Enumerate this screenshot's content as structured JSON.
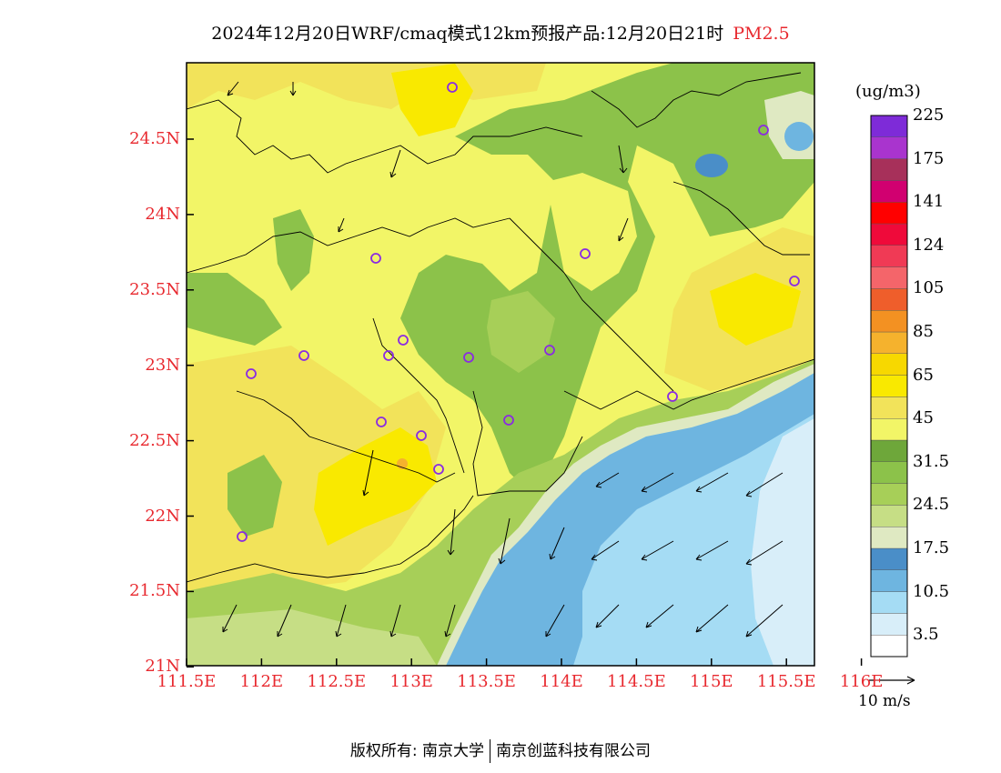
{
  "title": {
    "main": "2024年12月20日WRF/cmaq模式12km预报产品:12月20日21时",
    "pollutant": "PM2.5"
  },
  "map": {
    "x_ticks": [
      "111.5E",
      "112E",
      "112.5E",
      "113E",
      "113.5E",
      "114E",
      "114.5E",
      "115E",
      "115.5E",
      "116E"
    ],
    "y_ticks": [
      "24.5N",
      "24N",
      "23.5N",
      "23N",
      "22.5N",
      "22N",
      "21.5N",
      "21N"
    ]
  },
  "legend": {
    "unit": "(ug/m3)",
    "colors": [
      "#ffffff",
      "#d8eef9",
      "#a5dcf4",
      "#6eb5e0",
      "#4a8ec8",
      "#dfe9c2",
      "#c6de85",
      "#a7cf58",
      "#8cc24a",
      "#6ea73a",
      "#f2f567",
      "#f2e35a",
      "#f9e900",
      "#f7d800",
      "#f5b22d",
      "#f39122",
      "#ef5e2b",
      "#f4656a",
      "#f03a55",
      "#ef0a3a",
      "#ff0000",
      "#d10070",
      "#a7305a",
      "#a934ce",
      "#7e2bd8"
    ],
    "levels": [
      "3.5",
      "10.5",
      "17.5",
      "24.5",
      "31.5",
      "45",
      "65",
      "85",
      "105",
      "124",
      "141",
      "175",
      "225"
    ]
  },
  "wind_reference": {
    "label": "10  m/s"
  },
  "footer": {
    "left": "版权所有: 南京大学",
    "right": "南京创蓝科技有限公司"
  }
}
